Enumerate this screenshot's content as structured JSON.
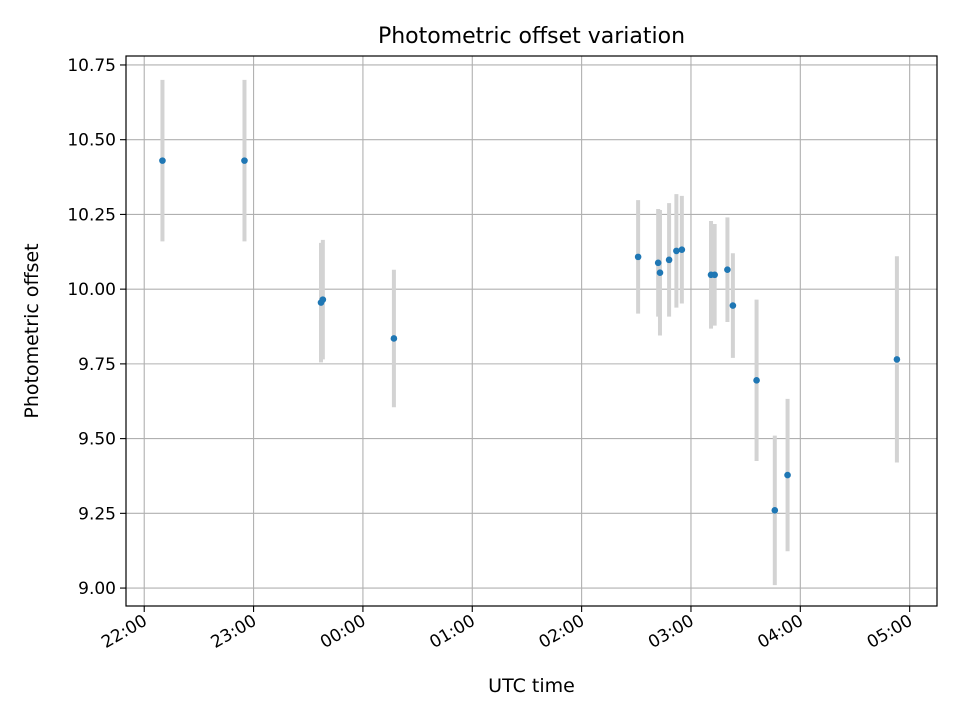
{
  "chart_data": {
    "type": "scatter",
    "title": "Photometric offset variation",
    "xlabel": "UTC time",
    "ylabel": "Photometric offset",
    "x_axis_kind": "time",
    "x_ticks": [
      "22:00",
      "23:00",
      "00:00",
      "01:00",
      "02:00",
      "03:00",
      "04:00",
      "05:00"
    ],
    "y_ticks": [
      "9.00",
      "9.25",
      "9.50",
      "9.75",
      "10.00",
      "10.25",
      "10.50",
      "10.75"
    ],
    "ylim": [
      8.94,
      10.78
    ],
    "xlim": [
      "21:50",
      "05:15"
    ],
    "grid": true,
    "legend": "none",
    "marker_color": "#1f77b4",
    "errorbar_color": "#d3d3d3",
    "points": [
      {
        "x": "22:10",
        "y": 10.43,
        "yerr": 0.27
      },
      {
        "x": "22:55",
        "y": 10.43,
        "yerr": 0.27
      },
      {
        "x": "23:37",
        "y": 9.955,
        "yerr": 0.2
      },
      {
        "x": "23:38",
        "y": 9.965,
        "yerr": 0.2
      },
      {
        "x": "00:17",
        "y": 9.835,
        "yerr": 0.23
      },
      {
        "x": "02:31",
        "y": 10.108,
        "yerr": 0.19
      },
      {
        "x": "02:42",
        "y": 10.088,
        "yerr": 0.18
      },
      {
        "x": "02:43",
        "y": 10.055,
        "yerr": 0.21
      },
      {
        "x": "02:48",
        "y": 10.098,
        "yerr": 0.19
      },
      {
        "x": "02:52",
        "y": 10.128,
        "yerr": 0.19
      },
      {
        "x": "02:55",
        "y": 10.132,
        "yerr": 0.18
      },
      {
        "x": "03:11",
        "y": 10.048,
        "yerr": 0.18
      },
      {
        "x": "03:13",
        "y": 10.048,
        "yerr": 0.17
      },
      {
        "x": "03:20",
        "y": 10.065,
        "yerr": 0.175
      },
      {
        "x": "03:23",
        "y": 9.945,
        "yerr": 0.175
      },
      {
        "x": "03:36",
        "y": 9.695,
        "yerr": 0.27
      },
      {
        "x": "03:46",
        "y": 9.26,
        "yerr": 0.25
      },
      {
        "x": "03:53",
        "y": 9.378,
        "yerr": 0.255
      },
      {
        "x": "04:53",
        "y": 9.765,
        "yerr": 0.345
      }
    ]
  }
}
